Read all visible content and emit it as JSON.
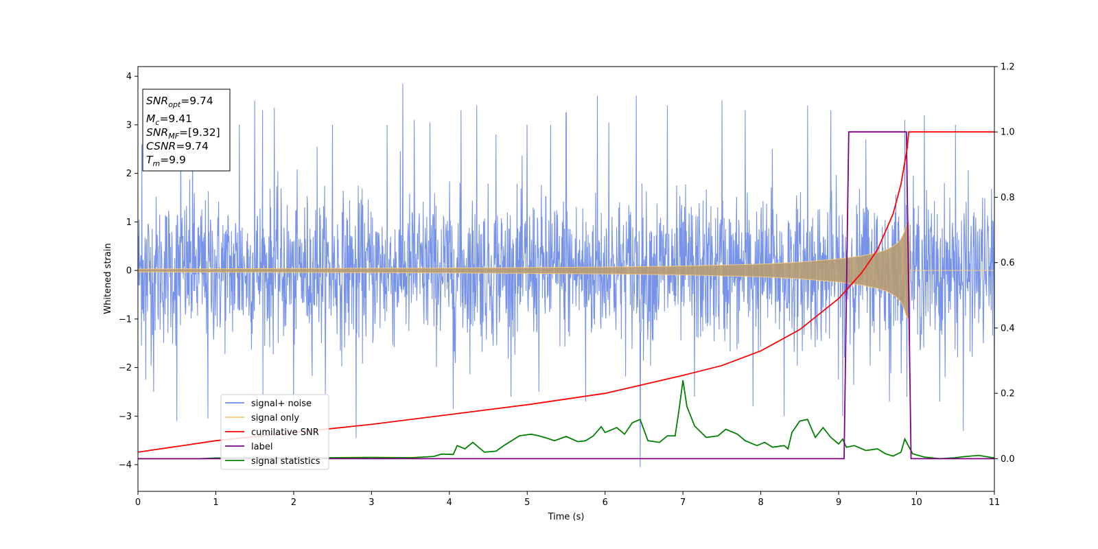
{
  "chart_data": {
    "type": "line",
    "xlabel": "Time (s)",
    "ylabel": "Whitened strain",
    "xlim": [
      0,
      11
    ],
    "ylim_left": [
      -4.55,
      4.2
    ],
    "ylim_right": [
      -0.1,
      1.2
    ],
    "x_ticks": [
      "0",
      "1",
      "2",
      "3",
      "4",
      "5",
      "6",
      "7",
      "8",
      "9",
      "10",
      "11"
    ],
    "y_ticks_left": [
      "4",
      "3",
      "2",
      "1",
      "0",
      "−1",
      "−2",
      "−3",
      "−4"
    ],
    "y_ticks_right": [
      "1.2",
      "1.0",
      "0.8",
      "0.6",
      "0.4",
      "0.2",
      "0.0"
    ],
    "info_box": {
      "snr_opt_label": "SNR",
      "snr_opt_sub": "opt",
      "snr_opt_value": "=9.74",
      "mc_label": "M",
      "mc_sub": "c",
      "mc_value": "=9.41",
      "snr_mf_label": "SNR",
      "snr_mf_sub": "MF",
      "snr_mf_value": "=[9.32]",
      "csnr_label": "CSNR",
      "csnr_value": "=9.74",
      "tm_label": "T",
      "tm_sub": "m",
      "tm_value": "=9.9"
    },
    "legend": {
      "location": "lower-left",
      "entries": [
        {
          "label": "signal+ noise",
          "color": "#6f8de8"
        },
        {
          "label": "signal only",
          "color": "#f5c97a"
        },
        {
          "label": "cumilative SNR",
          "color": "#ff0000"
        },
        {
          "label": "label",
          "color": "#800080"
        },
        {
          "label": "signal statistics",
          "color": "#008000"
        }
      ]
    },
    "series": [
      {
        "name": "signal+ noise",
        "axis": "left",
        "description_stats": {
          "mean": 0,
          "typical_range": [
            -2.2,
            2.6
          ],
          "max": 3.85,
          "min": -4.05
        },
        "spikes": [
          [
            0.05,
            2.6
          ],
          [
            0.1,
            -2.25
          ],
          [
            0.2,
            -2.5
          ],
          [
            0.5,
            -3.1
          ],
          [
            0.55,
            3.0
          ],
          [
            0.7,
            3.2
          ],
          [
            0.9,
            -3.05
          ],
          [
            1.3,
            3.0
          ],
          [
            1.5,
            3.5
          ],
          [
            1.6,
            3.3
          ],
          [
            1.75,
            3.35
          ],
          [
            2.0,
            -3.0
          ],
          [
            2.3,
            2.55
          ],
          [
            2.5,
            3.0
          ],
          [
            2.8,
            -3.45
          ],
          [
            3.2,
            3.0
          ],
          [
            3.4,
            3.85
          ],
          [
            3.55,
            3.1
          ],
          [
            3.75,
            3.05
          ],
          [
            4.05,
            -2.85
          ],
          [
            4.15,
            3.3
          ],
          [
            4.35,
            3.4
          ],
          [
            4.6,
            2.8
          ],
          [
            5.0,
            3.0
          ],
          [
            5.15,
            -2.5
          ],
          [
            5.3,
            3.0
          ],
          [
            5.5,
            3.25
          ],
          [
            5.75,
            -2.7
          ],
          [
            5.9,
            3.6
          ],
          [
            6.05,
            3.05
          ],
          [
            6.4,
            3.6
          ],
          [
            6.45,
            -4.05
          ],
          [
            6.8,
            3.4
          ],
          [
            7.15,
            -2.6
          ],
          [
            7.5,
            3.5
          ],
          [
            7.8,
            3.3
          ],
          [
            7.9,
            -2.8
          ],
          [
            8.15,
            2.5
          ],
          [
            8.3,
            -3.0
          ],
          [
            8.6,
            3.4
          ],
          [
            8.9,
            3.3
          ],
          [
            9.05,
            -3.0
          ],
          [
            9.35,
            2.7
          ],
          [
            9.65,
            -2.7
          ],
          [
            9.85,
            3.1
          ],
          [
            10.1,
            3.2
          ],
          [
            10.3,
            -2.7
          ],
          [
            10.5,
            3.0
          ],
          [
            10.6,
            -3.3
          ],
          [
            11.0,
            -2.5
          ]
        ]
      },
      {
        "name": "signal only",
        "axis": "left",
        "envelope": [
          [
            0.0,
            0.03
          ],
          [
            2.0,
            0.04
          ],
          [
            4.0,
            0.05
          ],
          [
            6.0,
            0.07
          ],
          [
            7.0,
            0.09
          ],
          [
            8.0,
            0.13
          ],
          [
            8.5,
            0.17
          ],
          [
            9.0,
            0.24
          ],
          [
            9.3,
            0.3
          ],
          [
            9.5,
            0.37
          ],
          [
            9.6,
            0.42
          ],
          [
            9.7,
            0.5
          ],
          [
            9.75,
            0.56
          ],
          [
            9.8,
            0.65
          ],
          [
            9.84,
            0.78
          ],
          [
            9.87,
            0.95
          ],
          [
            9.9,
            1.0
          ],
          [
            9.905,
            0.0
          ],
          [
            11.0,
            0.0
          ]
        ]
      },
      {
        "name": "cumilative SNR",
        "axis": "right",
        "points": [
          [
            0,
            0.02
          ],
          [
            1,
            0.055
          ],
          [
            2,
            0.08
          ],
          [
            3,
            0.105
          ],
          [
            4,
            0.135
          ],
          [
            5,
            0.165
          ],
          [
            6,
            0.2
          ],
          [
            7,
            0.255
          ],
          [
            7.5,
            0.285
          ],
          [
            8,
            0.33
          ],
          [
            8.5,
            0.395
          ],
          [
            9,
            0.49
          ],
          [
            9.3,
            0.57
          ],
          [
            9.5,
            0.64
          ],
          [
            9.7,
            0.75
          ],
          [
            9.8,
            0.84
          ],
          [
            9.88,
            0.95
          ],
          [
            9.9,
            1.0
          ],
          [
            11,
            1.0
          ]
        ]
      },
      {
        "name": "label",
        "axis": "right",
        "points": [
          [
            0,
            0.0
          ],
          [
            9.07,
            0.0
          ],
          [
            9.13,
            1.0
          ],
          [
            9.87,
            1.0
          ],
          [
            9.93,
            0.0
          ],
          [
            11,
            0.0
          ]
        ]
      },
      {
        "name": "signal statistics",
        "axis": "right",
        "points": [
          [
            0,
            0.0
          ],
          [
            0.8,
            0.0
          ],
          [
            1.0,
            0.002
          ],
          [
            1.5,
            0.003
          ],
          [
            2,
            0.002
          ],
          [
            2.5,
            0.003
          ],
          [
            3,
            0.004
          ],
          [
            3.5,
            0.003
          ],
          [
            3.8,
            0.007
          ],
          [
            3.9,
            0.014
          ],
          [
            4.05,
            0.013
          ],
          [
            4.1,
            0.04
          ],
          [
            4.2,
            0.03
          ],
          [
            4.3,
            0.05
          ],
          [
            4.45,
            0.02
          ],
          [
            4.6,
            0.023
          ],
          [
            4.7,
            0.04
          ],
          [
            4.9,
            0.07
          ],
          [
            5.05,
            0.075
          ],
          [
            5.15,
            0.07
          ],
          [
            5.25,
            0.063
          ],
          [
            5.35,
            0.055
          ],
          [
            5.5,
            0.068
          ],
          [
            5.65,
            0.052
          ],
          [
            5.75,
            0.055
          ],
          [
            5.85,
            0.07
          ],
          [
            5.95,
            0.098
          ],
          [
            6.0,
            0.08
          ],
          [
            6.15,
            0.095
          ],
          [
            6.25,
            0.075
          ],
          [
            6.35,
            0.11
          ],
          [
            6.45,
            0.12
          ],
          [
            6.55,
            0.055
          ],
          [
            6.7,
            0.05
          ],
          [
            6.8,
            0.07
          ],
          [
            6.9,
            0.07
          ],
          [
            6.95,
            0.15
          ],
          [
            7.0,
            0.24
          ],
          [
            7.05,
            0.16
          ],
          [
            7.15,
            0.1
          ],
          [
            7.3,
            0.065
          ],
          [
            7.45,
            0.07
          ],
          [
            7.55,
            0.09
          ],
          [
            7.7,
            0.075
          ],
          [
            7.8,
            0.055
          ],
          [
            7.95,
            0.04
          ],
          [
            8.05,
            0.05
          ],
          [
            8.15,
            0.035
          ],
          [
            8.3,
            0.04
          ],
          [
            8.35,
            0.03
          ],
          [
            8.4,
            0.08
          ],
          [
            8.5,
            0.115
          ],
          [
            8.6,
            0.12
          ],
          [
            8.7,
            0.065
          ],
          [
            8.8,
            0.095
          ],
          [
            8.9,
            0.065
          ],
          [
            9.0,
            0.045
          ],
          [
            9.05,
            0.06
          ],
          [
            9.1,
            0.035
          ],
          [
            9.2,
            0.04
          ],
          [
            9.35,
            0.025
          ],
          [
            9.5,
            0.03
          ],
          [
            9.6,
            0.015
          ],
          [
            9.7,
            0.008
          ],
          [
            9.8,
            0.02
          ],
          [
            9.85,
            0.06
          ],
          [
            9.95,
            0.015
          ],
          [
            10.1,
            0.005
          ],
          [
            10.3,
            0.0
          ],
          [
            10.5,
            0.003
          ],
          [
            10.6,
            0.006
          ],
          [
            10.8,
            0.01
          ],
          [
            11,
            0.002
          ]
        ]
      }
    ]
  }
}
